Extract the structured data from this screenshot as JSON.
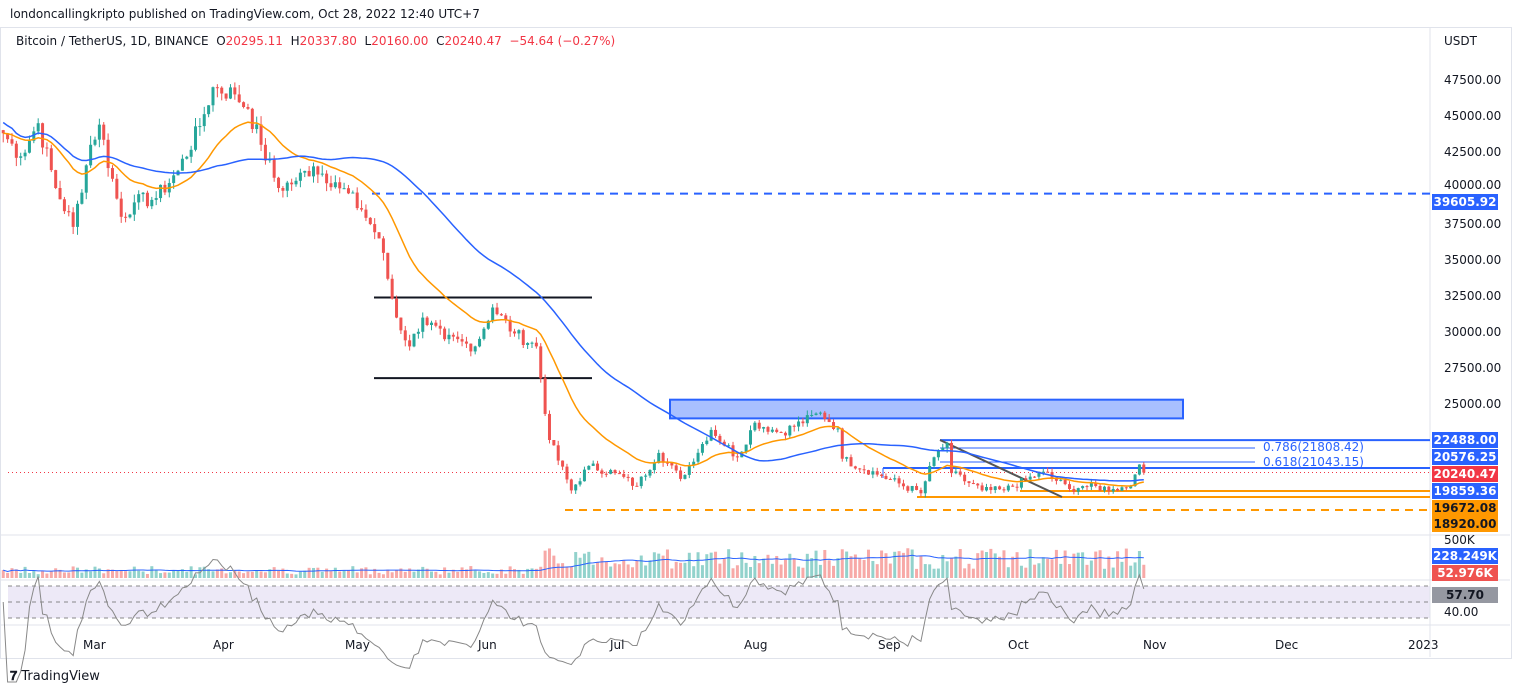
{
  "header": {
    "published": "londoncallingkripto published on TradingView.com, Oct 28, 2022 12:40 UTC+7"
  },
  "legend": {
    "symbol": "Bitcoin / TetherUS, 1D, BINANCE",
    "o_label": "O",
    "o": "20295.11",
    "h_label": "H",
    "h": "20337.80",
    "l_label": "L",
    "l": "20160.00",
    "c_label": "C",
    "c": "20240.47",
    "change": "−54.64 (−0.27%)"
  },
  "footer": {
    "logo": "TradingView"
  },
  "chart_data": {
    "type": "candlestick",
    "currency": "USDT",
    "y_ticks": [
      "47500.00",
      "45000.00",
      "42500.00",
      "40000.00",
      "37500.00",
      "35000.00",
      "32500.00",
      "30000.00",
      "27500.00",
      "25000.00"
    ],
    "x_ticks": [
      "Mar",
      "Apr",
      "May",
      "Jun",
      "Jul",
      "Aug",
      "Sep",
      "Oct",
      "Nov",
      "Dec",
      "2023"
    ],
    "close_path": [
      [
        "2022-02-08",
        43800
      ],
      [
        "2022-02-12",
        42200
      ],
      [
        "2022-02-16",
        44500
      ],
      [
        "2022-02-20",
        40000
      ],
      [
        "2022-02-24",
        37300
      ],
      [
        "2022-02-28",
        43000
      ],
      [
        "2022-03-02",
        44400
      ],
      [
        "2022-03-07",
        38000
      ],
      [
        "2022-03-10",
        39000
      ],
      [
        "2022-03-15",
        39300
      ],
      [
        "2022-03-20",
        41200
      ],
      [
        "2022-03-25",
        44300
      ],
      [
        "2022-03-28",
        47000
      ],
      [
        "2022-04-02",
        46500
      ],
      [
        "2022-04-05",
        45500
      ],
      [
        "2022-04-08",
        43000
      ],
      [
        "2022-04-12",
        40000
      ],
      [
        "2022-04-16",
        40500
      ],
      [
        "2022-04-20",
        41500
      ],
      [
        "2022-04-25",
        40400
      ],
      [
        "2022-05-01",
        38500
      ],
      [
        "2022-05-05",
        36500
      ],
      [
        "2022-05-09",
        31000
      ],
      [
        "2022-05-12",
        29000
      ],
      [
        "2022-05-15",
        31000
      ],
      [
        "2022-05-20",
        29500
      ],
      [
        "2022-05-27",
        29000
      ],
      [
        "2022-05-31",
        31700
      ],
      [
        "2022-06-05",
        29900
      ],
      [
        "2022-06-10",
        29000
      ],
      [
        "2022-06-13",
        22500
      ],
      [
        "2022-06-18",
        19000
      ],
      [
        "2022-06-22",
        20700
      ],
      [
        "2022-06-28",
        20200
      ],
      [
        "2022-07-03",
        19300
      ],
      [
        "2022-07-08",
        21600
      ],
      [
        "2022-07-13",
        19800
      ],
      [
        "2022-07-20",
        23200
      ],
      [
        "2022-07-26",
        21300
      ],
      [
        "2022-07-30",
        23700
      ],
      [
        "2022-08-05",
        23000
      ],
      [
        "2022-08-14",
        24400
      ],
      [
        "2022-08-18",
        23300
      ],
      [
        "2022-08-19",
        21200
      ],
      [
        "2022-08-28",
        20000
      ],
      [
        "2022-09-06",
        18800
      ],
      [
        "2022-09-09",
        21300
      ],
      [
        "2022-09-12",
        22300
      ],
      [
        "2022-09-13",
        20200
      ],
      [
        "2022-09-20",
        19000
      ],
      [
        "2022-09-25",
        19000
      ],
      [
        "2022-10-04",
        20300
      ],
      [
        "2022-10-10",
        19100
      ],
      [
        "2022-10-13",
        19300
      ],
      [
        "2022-10-20",
        19100
      ],
      [
        "2022-10-24",
        19300
      ],
      [
        "2022-10-25",
        20100
      ],
      [
        "2022-10-26",
        20800
      ],
      [
        "2022-10-27",
        20240
      ]
    ],
    "levels": [
      {
        "label": "39605.92",
        "price": 39605.92,
        "color": "#2962ff",
        "style": "dashed"
      },
      {
        "label": "22488.00",
        "price": 22488,
        "color": "#2962ff"
      },
      {
        "label": "20576.25",
        "price": 20576.25,
        "color": "#2962ff"
      },
      {
        "label": "20240.47",
        "price": 20240.47,
        "color": "#f23645"
      },
      {
        "label": "19859.36",
        "price": 19859.36,
        "color": "#2962ff"
      },
      {
        "label": "19672.08",
        "price": 19672.08,
        "color": "#ff9800"
      },
      {
        "label": "18920.00",
        "price": 18920,
        "color": "#ff9800"
      }
    ],
    "fib": [
      {
        "label": "0.786(21808.42)"
      },
      {
        "label": "0.618(21043.15)"
      }
    ],
    "range_box": {
      "top": 32400,
      "bottom": 26800
    },
    "resistance_zone": {
      "top": 25300,
      "bottom": 24000
    },
    "volume": {
      "tick": "500K",
      "ma_label": "228.249K",
      "last_label": "52.976K"
    },
    "rsi": {
      "value_label": "57.70",
      "tick": "40.00"
    }
  }
}
